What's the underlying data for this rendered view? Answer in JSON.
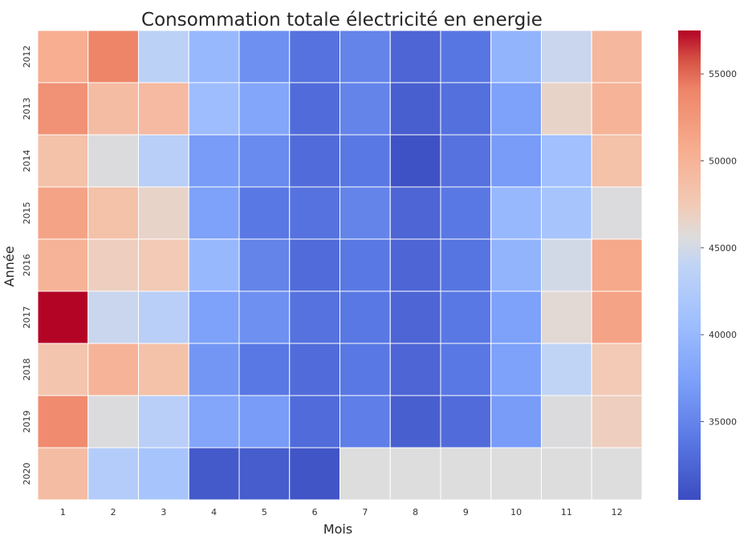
{
  "chart_data": {
    "type": "heatmap",
    "title": "Consommation totale électricité en energie",
    "xlabel": "Mois",
    "ylabel": "Année",
    "x_categories": [
      "1",
      "2",
      "3",
      "4",
      "5",
      "6",
      "7",
      "8",
      "9",
      "10",
      "11",
      "12"
    ],
    "y_categories": [
      "2012",
      "2013",
      "2014",
      "2015",
      "2016",
      "2017",
      "2018",
      "2019",
      "2020"
    ],
    "colormap": "coolwarm",
    "vmin": 30500,
    "vmax": 57500,
    "colorbar_ticks": [
      35000,
      40000,
      45000,
      50000,
      55000
    ],
    "missing_color": "#dddddd",
    "grid": false,
    "values": [
      [
        50500,
        54000,
        43500,
        40000,
        36000,
        33500,
        35000,
        32500,
        33800,
        39500,
        44500,
        49500
      ],
      [
        53000,
        49000,
        49200,
        40500,
        38000,
        33000,
        35000,
        32000,
        33300,
        37500,
        46500,
        50000
      ],
      [
        48500,
        45500,
        43300,
        37000,
        35500,
        33000,
        34000,
        31000,
        33500,
        37000,
        41000,
        48500
      ],
      [
        51500,
        48500,
        46500,
        37500,
        34000,
        33500,
        35000,
        32500,
        34000,
        40000,
        41500,
        45500
      ],
      [
        50000,
        47000,
        47500,
        40000,
        35000,
        33000,
        34000,
        32500,
        33700,
        39500,
        45000,
        51000
      ],
      [
        57500,
        44500,
        43300,
        37500,
        36000,
        33500,
        34000,
        32500,
        34000,
        37500,
        46000,
        51500
      ],
      [
        48000,
        50000,
        48500,
        36500,
        34000,
        33000,
        34000,
        32500,
        34000,
        37500,
        44000,
        47500
      ],
      [
        53500,
        45500,
        43300,
        38000,
        37000,
        33000,
        34500,
        32000,
        33000,
        37000,
        45500,
        47000
      ],
      [
        49000,
        42800,
        41500,
        31500,
        31800,
        31200,
        null,
        null,
        null,
        null,
        null,
        null
      ]
    ]
  }
}
